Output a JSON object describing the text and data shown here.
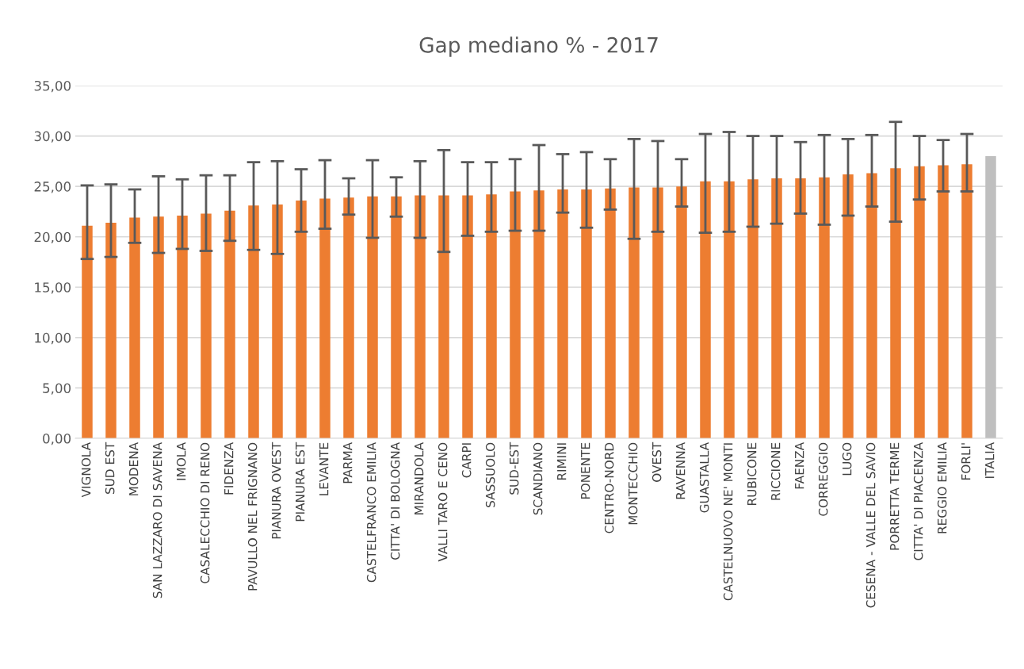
{
  "chart_data": {
    "type": "bar",
    "title": "Gap mediano % - 2017",
    "categories": [
      "VIGNOLA",
      "SUD EST",
      "MODENA",
      "SAN LAZZARO DI SAVENA",
      "IMOLA",
      "CASALECCHIO DI RENO",
      "FIDENZA",
      "PAVULLO NEL FRIGNANO",
      "PIANURA OVEST",
      "PIANURA EST",
      "LEVANTE",
      "PARMA",
      "CASTELFRANCO EMILIA",
      "CITTA' DI BOLOGNA",
      "MIRANDOLA",
      "VALLI TARO E CENO",
      "CARPI",
      "SASSUOLO",
      "SUD-EST",
      "SCANDIANO",
      "RIMINI",
      "PONENTE",
      "CENTRO-NORD",
      "MONTECCHIO",
      "OVEST",
      "RAVENNA",
      "GUASTALLA",
      "CASTELNUOVO NE' MONTI",
      "RUBICONE",
      "RICCIONE",
      "FAENZA",
      "CORREGGIO",
      "LUGO",
      "CESENA - VALLE DEL SAVIO",
      "PORRETTA TERME",
      "CITTA' DI PIACENZA",
      "REGGIO EMILIA",
      "FORLI'",
      "ITALIA"
    ],
    "values": [
      21.1,
      21.4,
      21.9,
      22.0,
      22.1,
      22.3,
      22.6,
      23.1,
      23.2,
      23.6,
      23.8,
      23.9,
      24.0,
      24.0,
      24.1,
      24.1,
      24.1,
      24.2,
      24.5,
      24.6,
      24.7,
      24.7,
      24.8,
      24.9,
      24.9,
      25.0,
      25.5,
      25.5,
      25.7,
      25.8,
      25.8,
      25.9,
      26.2,
      26.3,
      26.8,
      27.0,
      27.1,
      27.2,
      28.0
    ],
    "errors": [
      [
        17.8,
        25.1
      ],
      [
        18.0,
        25.2
      ],
      [
        19.4,
        24.7
      ],
      [
        18.4,
        26.0
      ],
      [
        18.8,
        25.7
      ],
      [
        18.6,
        26.1
      ],
      [
        19.6,
        26.1
      ],
      [
        18.7,
        27.4
      ],
      [
        18.3,
        27.5
      ],
      [
        20.5,
        26.7
      ],
      [
        20.8,
        27.6
      ],
      [
        22.2,
        25.8
      ],
      [
        19.9,
        27.6
      ],
      [
        22.0,
        25.9
      ],
      [
        19.9,
        27.5
      ],
      [
        18.5,
        28.6
      ],
      [
        20.1,
        27.4
      ],
      [
        20.5,
        27.4
      ],
      [
        20.6,
        27.7
      ],
      [
        20.6,
        29.1
      ],
      [
        22.4,
        28.2
      ],
      [
        20.9,
        28.4
      ],
      [
        22.7,
        27.7
      ],
      [
        19.8,
        29.7
      ],
      [
        20.5,
        29.5
      ],
      [
        23.0,
        27.7
      ],
      [
        20.4,
        30.2
      ],
      [
        20.5,
        30.4
      ],
      [
        21.0,
        30.0
      ],
      [
        21.3,
        30.0
      ],
      [
        22.3,
        29.4
      ],
      [
        21.2,
        30.1
      ],
      [
        22.1,
        29.7
      ],
      [
        23.0,
        30.1
      ],
      [
        21.5,
        31.4
      ],
      [
        23.7,
        30.0
      ],
      [
        24.5,
        29.6
      ],
      [
        24.5,
        30.2
      ],
      null
    ],
    "colors": [
      "#ed7d31",
      "#ed7d31",
      "#ed7d31",
      "#ed7d31",
      "#ed7d31",
      "#ed7d31",
      "#ed7d31",
      "#ed7d31",
      "#ed7d31",
      "#ed7d31",
      "#ed7d31",
      "#ed7d31",
      "#ed7d31",
      "#ed7d31",
      "#ed7d31",
      "#ed7d31",
      "#ed7d31",
      "#ed7d31",
      "#ed7d31",
      "#ed7d31",
      "#ed7d31",
      "#ed7d31",
      "#ed7d31",
      "#ed7d31",
      "#ed7d31",
      "#ed7d31",
      "#ed7d31",
      "#ed7d31",
      "#ed7d31",
      "#ed7d31",
      "#ed7d31",
      "#ed7d31",
      "#ed7d31",
      "#ed7d31",
      "#ed7d31",
      "#ed7d31",
      "#ed7d31",
      "#ed7d31",
      "#bfbfbf"
    ],
    "ylim": [
      0,
      35
    ],
    "yticks": [
      {
        "value": 0,
        "label": "0,00"
      },
      {
        "value": 5,
        "label": "5,00"
      },
      {
        "value": 10,
        "label": "10,00"
      },
      {
        "value": 15,
        "label": "15,00"
      },
      {
        "value": 20,
        "label": "20,00"
      },
      {
        "value": 25,
        "label": "25,00"
      },
      {
        "value": 30,
        "label": "30,00"
      },
      {
        "value": 35,
        "label": "35,00"
      }
    ],
    "grid": "y"
  }
}
